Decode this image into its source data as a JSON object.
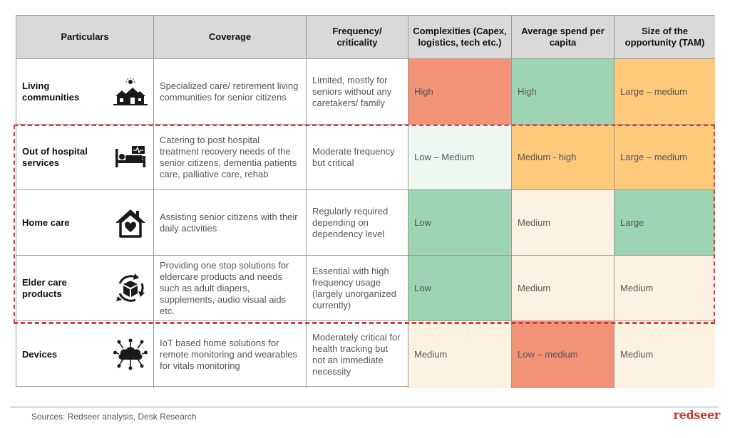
{
  "colors": {
    "red": "#f29377",
    "green": "#9dd4b2",
    "orange": "#fdc97a",
    "light_peach": "#fdf2e1",
    "light_green": "#eef7f0",
    "header_gray": "#d9d9d9",
    "dashed_red": "#e0383a",
    "brand": "#c53a2f"
  },
  "headers": [
    "Particulars",
    "Coverage",
    "Frequency/ criticality",
    "Complexities (Capex, logistics, tech etc.)",
    "Average spend per capita",
    "Size of the opportunity (TAM)"
  ],
  "rows": [
    {
      "particular": "Living communities",
      "icon": "houses-sun-icon",
      "coverage": "Specialized care/ retirement living communities for senior citizens",
      "frequency": "Limited, mostly for seniors without any caretakers/ family",
      "complexity": "High",
      "complexity_color": "#f29377",
      "spend": "High",
      "spend_color": "#9dd4b2",
      "size": "Large – medium",
      "size_color": "#fdc97a"
    },
    {
      "particular": "Out of hospital services",
      "icon": "hospital-bed-icon",
      "coverage": "Catering to post hospital treatment recovery needs of the senior citizens, dementia patients care, palliative care, rehab",
      "frequency": "Moderate frequency but critical",
      "complexity": "Low – Medium",
      "complexity_color": "#eef7f0",
      "spend": "Medium - high",
      "spend_color": "#fdc97a",
      "size": "Large – medium",
      "size_color": "#fdc97a"
    },
    {
      "particular": "Home care",
      "icon": "home-heart-icon",
      "coverage": "Assisting senior citizens with their daily activities",
      "frequency": "Regularly required depending on dependency level",
      "complexity": "Low",
      "complexity_color": "#9dd4b2",
      "spend": "Medium",
      "spend_color": "#fdf2e1",
      "size": "Large",
      "size_color": "#9dd4b2"
    },
    {
      "particular": "Elder care products",
      "icon": "product-cycle-icon",
      "coverage": "Providing one stop solutions for eldercare products and needs such as adult diapers, supplements, audio visual aids etc.",
      "frequency": "Essential with high frequency usage (largely unorganized currently)",
      "complexity": "Low",
      "complexity_color": "#9dd4b2",
      "spend": "Medium",
      "spend_color": "#fdf2e1",
      "size": "Medium",
      "size_color": "#fdf2e1"
    },
    {
      "particular": "Devices",
      "icon": "iot-cloud-icon",
      "coverage": "IoT based home solutions for remote monitoring and wearables for vitals monitoring",
      "frequency": "Moderately critical for health tracking but not an immediate necessity",
      "complexity": "Medium",
      "complexity_color": "#fdf2e1",
      "spend": "Low – medium",
      "spend_color": "#f29377",
      "size": "Medium",
      "size_color": "#fdf2e1"
    }
  ],
  "footer": {
    "sources": "Sources: Redseer analysis, Desk Research",
    "logo": "redseer"
  }
}
